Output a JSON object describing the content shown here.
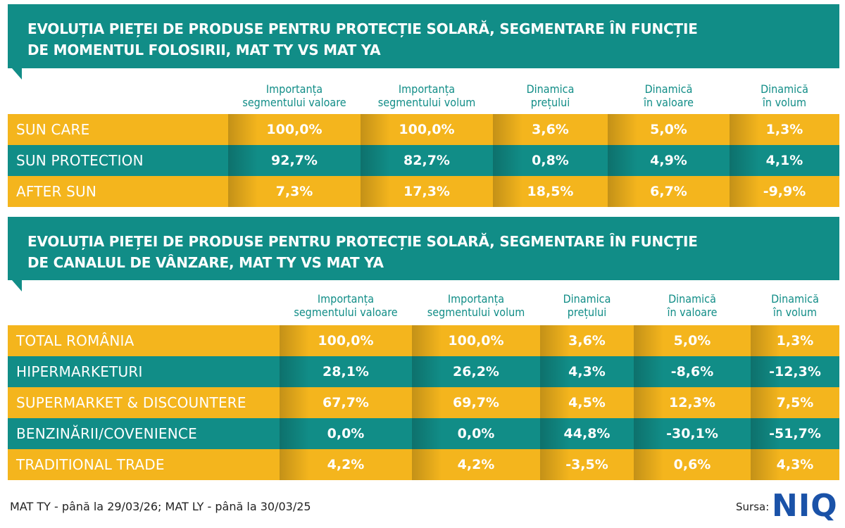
{
  "chart_data": [
    {
      "type": "table",
      "title": [
        "EVOLUȚIA PIEȚEI DE PRODUSE PENTRU PROTECȚIE SOLARĂ, SEGMENTARE ÎN FUNCȚIE",
        "DE MOMENTUL FOLOSIRII, MAT TY VS MAT YA"
      ],
      "columns": [
        [
          "Importanța",
          "segmentului valoare"
        ],
        [
          "Importanța",
          "segmentului volum"
        ],
        [
          "Dinamica",
          "prețului"
        ],
        [
          "Dinamică",
          "în valoare"
        ],
        [
          "Dinamică",
          "în volum"
        ]
      ],
      "rows": [
        {
          "label": "SUN CARE",
          "values": [
            "100,0%",
            "100,0%",
            "3,6%",
            "5,0%",
            "1,3%"
          ]
        },
        {
          "label": "SUN PROTECTION",
          "values": [
            "92,7%",
            "82,7%",
            "0,8%",
            "4,9%",
            "4,1%"
          ]
        },
        {
          "label": "AFTER SUN",
          "values": [
            "7,3%",
            "17,3%",
            "18,5%",
            "6,7%",
            "-9,9%"
          ]
        }
      ]
    },
    {
      "type": "table",
      "title": [
        "EVOLUȚIA PIEȚEI DE PRODUSE PENTRU PROTECȚIE SOLARĂ, SEGMENTARE ÎN FUNCȚIE",
        "DE CANALUL DE VÂNZARE, MAT TY VS MAT YA"
      ],
      "columns": [
        [
          "Importanța",
          "segmentului valoare"
        ],
        [
          "Importanța",
          "segmentului volum"
        ],
        [
          "Dinamica",
          "prețului"
        ],
        [
          "Dinamică",
          "în valoare"
        ],
        [
          "Dinamică",
          "în volum"
        ]
      ],
      "rows": [
        {
          "label": "TOTAL ROMÂNIA",
          "values": [
            "100,0%",
            "100,0%",
            "3,6%",
            "5,0%",
            "1,3%"
          ]
        },
        {
          "label": "HIPERMARKETURI",
          "values": [
            "28,1%",
            "26,2%",
            "4,3%",
            "-8,6%",
            "-12,3%"
          ]
        },
        {
          "label": "SUPERMARKET & DISCOUNTERE",
          "values": [
            "67,7%",
            "69,7%",
            "4,5%",
            "12,3%",
            "7,5%"
          ]
        },
        {
          "label": "BENZINĂRII/COVENIENCE",
          "values": [
            "0,0%",
            "0,0%",
            "44,8%",
            "-30,1%",
            "-51,7%"
          ]
        },
        {
          "label": "TRADITIONAL TRADE",
          "values": [
            "4,2%",
            "4,2%",
            "-3,5%",
            "0,6%",
            "4,3%"
          ]
        }
      ]
    }
  ],
  "footnote": "MAT TY - până la 29/03/26; MAT LY - până la 30/03/25",
  "source_label": "Sursa:",
  "logo": "NIQ",
  "colors": {
    "teal": "#118d87",
    "gold": "#f4b51d",
    "logo_blue": "#1a52a8"
  }
}
